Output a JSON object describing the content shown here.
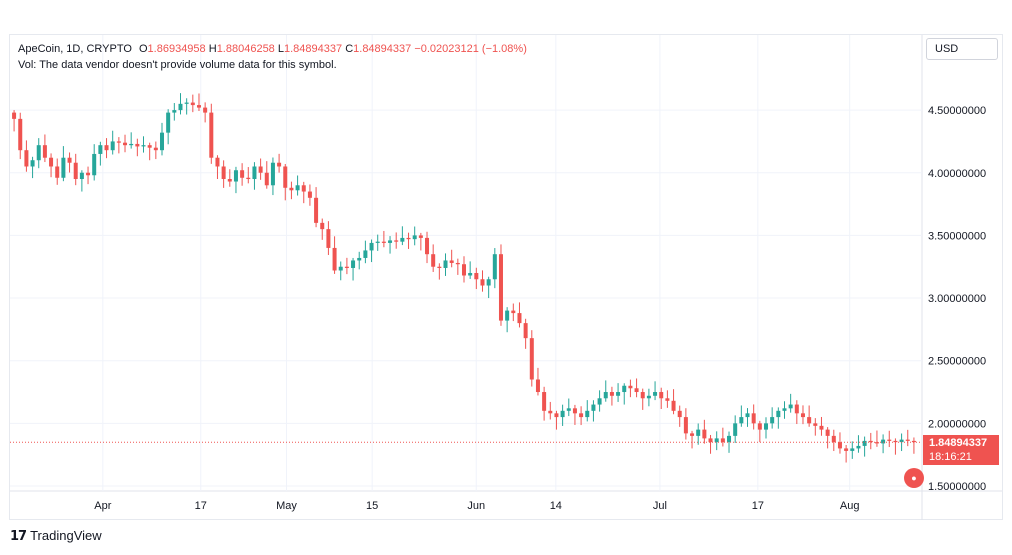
{
  "legend": {
    "symbol": "ApeCoin, 1D, CRYPTO",
    "o_label": "O",
    "o_value": "1.86934958",
    "h_label": "H",
    "h_value": "1.88046258",
    "l_label": "L",
    "l_value": "1.84894337",
    "c_label": "C",
    "c_value": "1.84894337",
    "change": "−0.02023121 (−1.08%)"
  },
  "volume_note": "Vol: The data vendor doesn't provide volume data for this symbol.",
  "currency_button": "USD",
  "last_price": "1.84894337",
  "countdown": "18:16:21",
  "brand": "TradingView",
  "colors": {
    "up": "#26a69a",
    "down": "#ef5350",
    "grid": "#f0f3fa",
    "price_line": "#ef5350"
  },
  "chart_data": {
    "type": "candlestick",
    "ylim": [
      1.45,
      4.75
    ],
    "y_ticks": [
      "4.50000000",
      "4.00000000",
      "3.50000000",
      "3.00000000",
      "2.50000000",
      "2.00000000",
      "1.50000000"
    ],
    "x_ticks": [
      "Apr",
      "17",
      "May",
      "15",
      "Jun",
      "14",
      "Jul",
      "17",
      "Aug"
    ],
    "x_tick_dates": [
      "2022-04-01",
      "2022-04-17",
      "2022-05-01",
      "2022-05-15",
      "2022-06-01",
      "2022-06-14",
      "2022-07-01",
      "2022-07-17",
      "2022-08-01"
    ],
    "start_date": "2022-03-17",
    "end_date": "2022-08-12",
    "closes": [
      4.43,
      4.18,
      4.05,
      4.1,
      4.22,
      4.12,
      4.05,
      3.96,
      4.12,
      4.08,
      3.95,
      4.0,
      3.98,
      4.15,
      4.22,
      4.18,
      4.25,
      4.24,
      4.22,
      4.23,
      4.21,
      4.22,
      4.2,
      4.18,
      4.32,
      4.48,
      4.5,
      4.55,
      4.56,
      4.54,
      4.52,
      4.48,
      4.12,
      4.05,
      3.95,
      3.93,
      4.02,
      3.96,
      3.95,
      4.05,
      4.0,
      3.9,
      4.08,
      4.05,
      3.88,
      3.86,
      3.9,
      3.85,
      3.8,
      3.6,
      3.55,
      3.4,
      3.22,
      3.25,
      3.24,
      3.3,
      3.32,
      3.38,
      3.44,
      3.45,
      3.44,
      3.46,
      3.45,
      3.48,
      3.47,
      3.5,
      3.48,
      3.35,
      3.25,
      3.24,
      3.3,
      3.28,
      3.27,
      3.18,
      3.2,
      3.15,
      3.1,
      3.15,
      3.35,
      2.82,
      2.9,
      2.88,
      2.8,
      2.68,
      2.35,
      2.25,
      2.1,
      2.08,
      2.05,
      2.1,
      2.12,
      2.08,
      2.05,
      2.1,
      2.15,
      2.2,
      2.25,
      2.22,
      2.25,
      2.3,
      2.28,
      2.25,
      2.2,
      2.22,
      2.25,
      2.2,
      2.18,
      2.1,
      2.05,
      1.92,
      1.9,
      1.95,
      1.88,
      1.85,
      1.88,
      1.85,
      1.9,
      2.0,
      2.05,
      2.08,
      2.0,
      1.95,
      2.0,
      2.05,
      2.1,
      2.12,
      2.15,
      2.08,
      2.05,
      2.0,
      1.98,
      1.95,
      1.9,
      1.85,
      1.8,
      1.78,
      1.8,
      1.82,
      1.86,
      1.85,
      1.84,
      1.87,
      1.86,
      1.85,
      1.87,
      1.86,
      1.85
    ]
  }
}
